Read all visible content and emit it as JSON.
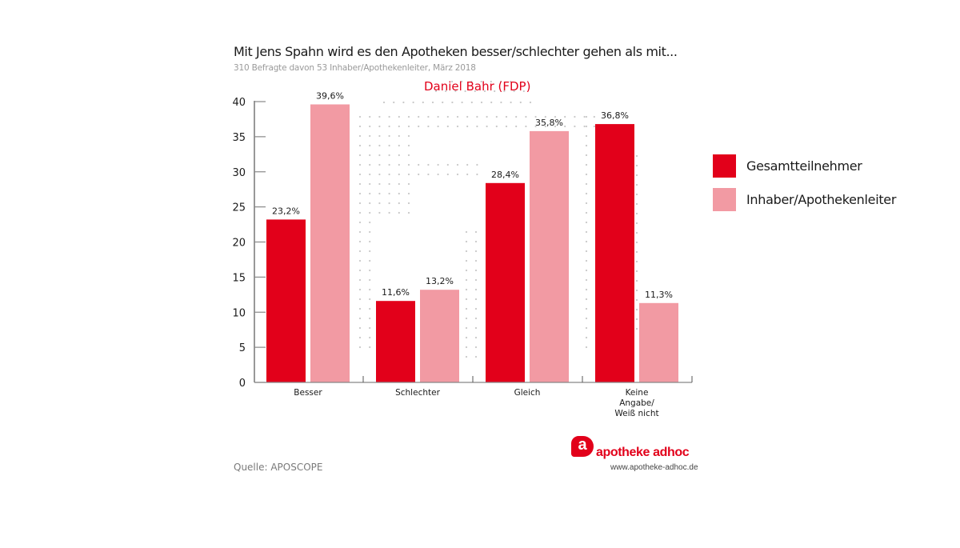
{
  "source": "Quelle: APOSCOPE",
  "logo": {
    "name": "apotheke adhoc",
    "glyph": "a",
    "url": "www.apotheke-adhoc.de"
  },
  "colors": {
    "series1": "#e2001a",
    "series2": "#f29aa3",
    "accent": "#e2001a",
    "axis": "#555555",
    "dots": "#c8c8c8"
  },
  "chart_data": {
    "type": "bar",
    "title": "Mit Jens Spahn wird es den Apotheken besser/schlechter gehen als mit...",
    "subtitle": "310 Befragte davon 53 Inhaber/Apothekenleiter, März 2018",
    "annotation": "Daniel Bahr (FDP)",
    "categories": [
      "Besser",
      "Schlechter",
      "Gleich",
      "Keine Angabe/ Weiß nicht"
    ],
    "category_lines": [
      [
        "Besser"
      ],
      [
        "Schlechter"
      ],
      [
        "Gleich"
      ],
      [
        "Keine",
        "Angabe/",
        "Weiß nicht"
      ]
    ],
    "series": [
      {
        "name": "Gesamtteilnehmer",
        "values": [
          23.2,
          11.6,
          28.4,
          36.8
        ],
        "labels": [
          "23,2%",
          "11,6%",
          "28,4%",
          "36,8%"
        ]
      },
      {
        "name": "Inhaber/Apothekenleiter",
        "values": [
          39.6,
          13.2,
          35.8,
          11.3
        ],
        "labels": [
          "39,6%",
          "13,2%",
          "35,8%",
          "11,3%"
        ]
      }
    ],
    "xlabel": "",
    "ylabel": "",
    "ylim": [
      0,
      40
    ],
    "yticks": [
      0,
      5,
      10,
      15,
      20,
      25,
      30,
      35,
      40
    ],
    "grid": false,
    "legend_position": "right"
  }
}
